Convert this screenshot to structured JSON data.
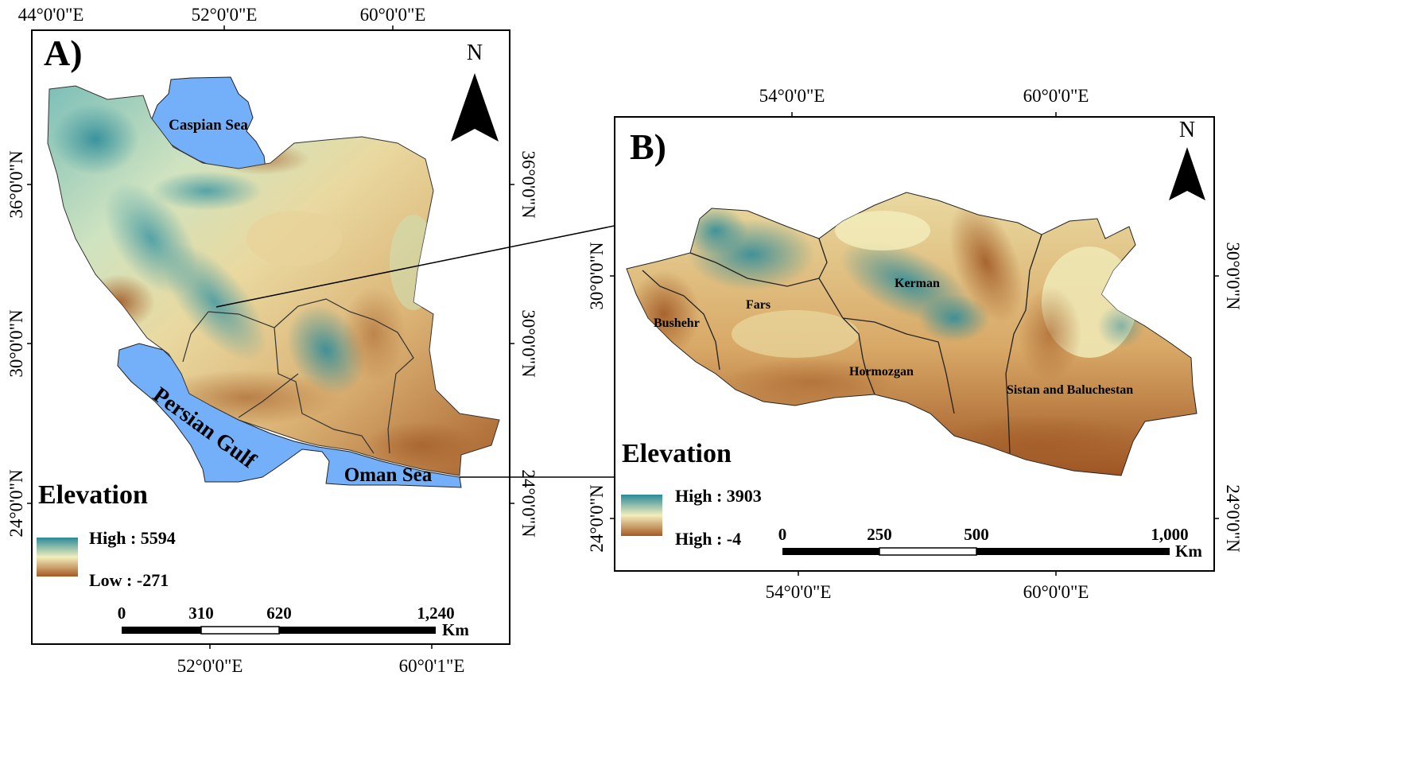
{
  "panel_a": {
    "label": "A)",
    "top_coords": [
      "44°0'0\"E",
      "52°0'0\"E",
      "60°0'0\"E"
    ],
    "bottom_coords": [
      "52°0'0\"E",
      "60°0'1\"E"
    ],
    "left_coords": [
      "36°0'0\"N",
      "30°0'0\"N",
      "24°0'0\"N"
    ],
    "right_coords": [
      "36°0'0\"N",
      "30°0'0\"N",
      "24°0'0\"N"
    ],
    "north": "N",
    "water_labels": {
      "caspian": "Caspian Sea",
      "persian_gulf": "Persian Gulf",
      "oman_sea": "Oman Sea"
    },
    "legend": {
      "title": "Elevation",
      "high": "High : 5594",
      "low": "Low : -271"
    },
    "scale": {
      "ticks": [
        "0",
        "310",
        "620",
        "1,240"
      ],
      "unit": "Km"
    }
  },
  "panel_b": {
    "label": "B)",
    "top_coords": [
      "54°0'0\"E",
      "60°0'0\"E"
    ],
    "bottom_coords": [
      "54°0'0\"E",
      "60°0'0\"E"
    ],
    "left_coords": [
      "30°0'0\"N",
      "24°0'0\"N"
    ],
    "right_coords": [
      "30°0'0\"N",
      "24°0'0\"N"
    ],
    "north": "N",
    "provinces": {
      "fars": "Fars",
      "kerman": "Kerman",
      "bushehr": "Bushehr",
      "hormozgan": "Hormozgan",
      "sistan": "Sistan and Baluchestan"
    },
    "legend": {
      "title": "Elevation",
      "high": "High : 3903",
      "low": "High : -4"
    },
    "scale": {
      "ticks": [
        "0",
        "250",
        "500",
        "1,000"
      ],
      "unit": "Km"
    }
  },
  "colors": {
    "water": "#74b0f9",
    "elev_high": "#2a8a99",
    "elev_mid": "#f2eebd",
    "elev_low": "#9e5523"
  }
}
